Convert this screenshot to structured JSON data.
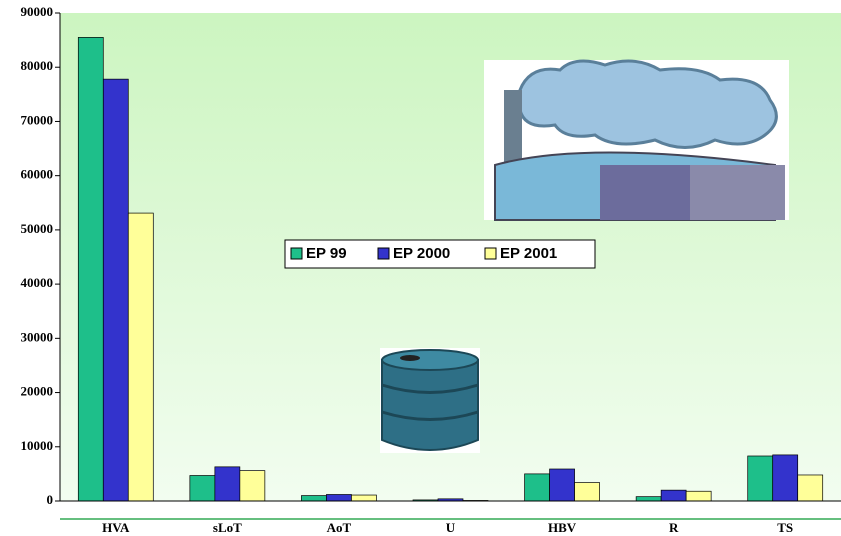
{
  "chart_data": {
    "type": "bar",
    "categories": [
      "HVA",
      "sLoT",
      "AoT",
      "U",
      "HBV",
      "R",
      "TS"
    ],
    "series": [
      {
        "name": "EP 99",
        "color": "#1ebf8a",
        "values": [
          85500,
          4700,
          1000,
          200,
          5000,
          800,
          8300
        ]
      },
      {
        "name": "EP 2000",
        "color": "#3333cc",
        "values": [
          77800,
          6300,
          1200,
          400,
          5900,
          2000,
          8500
        ]
      },
      {
        "name": "EP 2001",
        "color": "#ffff99",
        "values": [
          53100,
          5600,
          1100,
          100,
          3400,
          1800,
          4800
        ]
      }
    ],
    "ylim": [
      0,
      90000
    ],
    "yticks": [
      0,
      10000,
      20000,
      30000,
      40000,
      50000,
      60000,
      70000,
      80000,
      90000
    ]
  }
}
